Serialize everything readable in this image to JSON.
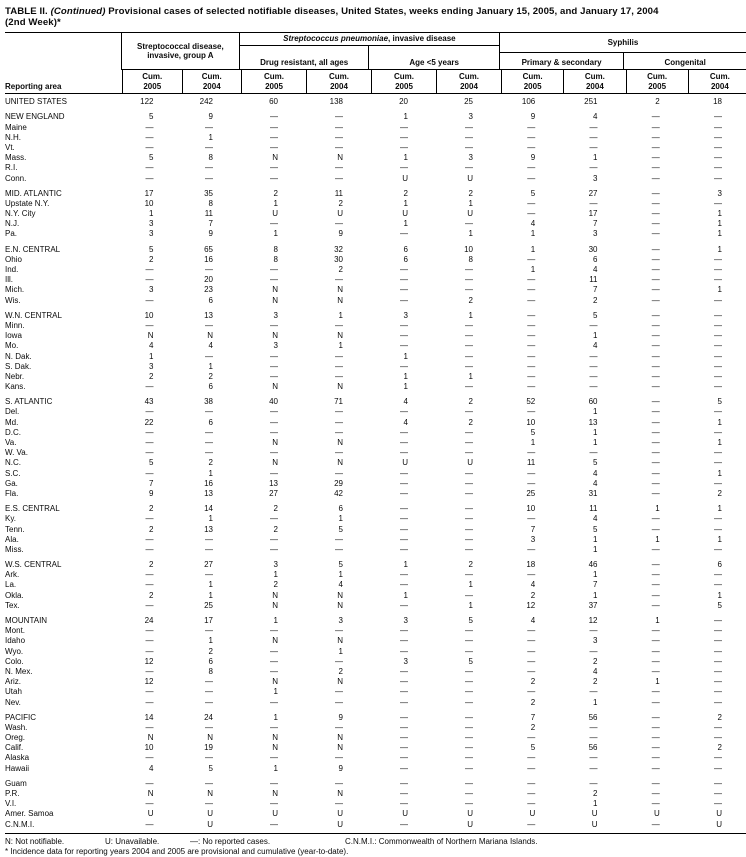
{
  "title": {
    "lead": "TABLE II. ",
    "continued": "(Continued)",
    "rest": " Provisional cases of selected notifiable diseases, United States, weeks ending January 15, 2005, and January 17, 2004",
    "line2": "(2nd Week)*"
  },
  "header": {
    "reporting_area": "Reporting area",
    "group_a": "Streptococcal disease, invasive, group A",
    "spn_italic": "Streptococcus pneumoniae",
    "spn_rest": ", invasive disease",
    "drug_resistant": "Drug resistant, all ages",
    "age5": "Age <5 years",
    "syphilis": "Syphilis",
    "primary_secondary": "Primary & secondary",
    "congenital": "Congenital",
    "cum": "Cum.",
    "years": [
      "2005",
      "2004",
      "2005",
      "2004",
      "2005",
      "2004",
      "2005",
      "2004",
      "2005",
      "2004"
    ]
  },
  "groups": [
    {
      "rows": [
        {
          "area": "UNITED STATES",
          "values": [
            "122",
            "242",
            "60",
            "138",
            "20",
            "25",
            "106",
            "251",
            "2",
            "18"
          ]
        }
      ]
    },
    {
      "rows": [
        {
          "area": "NEW ENGLAND",
          "values": [
            "5",
            "9",
            "—",
            "—",
            "1",
            "3",
            "9",
            "4",
            "—",
            "—"
          ]
        },
        {
          "area": "Maine",
          "values": [
            "—",
            "—",
            "—",
            "—",
            "—",
            "—",
            "—",
            "—",
            "—",
            "—"
          ]
        },
        {
          "area": "N.H.",
          "values": [
            "—",
            "1",
            "—",
            "—",
            "—",
            "—",
            "—",
            "—",
            "—",
            "—"
          ]
        },
        {
          "area": "Vt.",
          "values": [
            "—",
            "—",
            "—",
            "—",
            "—",
            "—",
            "—",
            "—",
            "—",
            "—"
          ]
        },
        {
          "area": "Mass.",
          "values": [
            "5",
            "8",
            "N",
            "N",
            "1",
            "3",
            "9",
            "1",
            "—",
            "—"
          ]
        },
        {
          "area": "R.I.",
          "values": [
            "—",
            "—",
            "—",
            "—",
            "—",
            "—",
            "—",
            "—",
            "—",
            "—"
          ]
        },
        {
          "area": "Conn.",
          "values": [
            "—",
            "—",
            "—",
            "—",
            "U",
            "U",
            "—",
            "3",
            "—",
            "—"
          ]
        }
      ]
    },
    {
      "rows": [
        {
          "area": "MID. ATLANTIC",
          "values": [
            "17",
            "35",
            "2",
            "11",
            "2",
            "2",
            "5",
            "27",
            "—",
            "3"
          ]
        },
        {
          "area": "Upstate N.Y.",
          "values": [
            "10",
            "8",
            "1",
            "2",
            "1",
            "1",
            "—",
            "—",
            "—",
            "—"
          ]
        },
        {
          "area": "N.Y. City",
          "values": [
            "1",
            "11",
            "U",
            "U",
            "U",
            "U",
            "—",
            "17",
            "—",
            "1"
          ]
        },
        {
          "area": "N.J.",
          "values": [
            "3",
            "7",
            "—",
            "—",
            "1",
            "—",
            "4",
            "7",
            "—",
            "1"
          ]
        },
        {
          "area": "Pa.",
          "values": [
            "3",
            "9",
            "1",
            "9",
            "—",
            "1",
            "1",
            "3",
            "—",
            "1"
          ]
        }
      ]
    },
    {
      "rows": [
        {
          "area": "E.N. CENTRAL",
          "values": [
            "5",
            "65",
            "8",
            "32",
            "6",
            "10",
            "1",
            "30",
            "—",
            "1"
          ]
        },
        {
          "area": "Ohio",
          "values": [
            "2",
            "16",
            "8",
            "30",
            "6",
            "8",
            "—",
            "6",
            "—",
            "—"
          ]
        },
        {
          "area": "Ind.",
          "values": [
            "—",
            "—",
            "—",
            "2",
            "—",
            "—",
            "1",
            "4",
            "—",
            "—"
          ]
        },
        {
          "area": "Ill.",
          "values": [
            "—",
            "20",
            "—",
            "—",
            "—",
            "—",
            "—",
            "11",
            "—",
            "—"
          ]
        },
        {
          "area": "Mich.",
          "values": [
            "3",
            "23",
            "N",
            "N",
            "—",
            "—",
            "—",
            "7",
            "—",
            "1"
          ]
        },
        {
          "area": "Wis.",
          "values": [
            "—",
            "6",
            "N",
            "N",
            "—",
            "2",
            "—",
            "2",
            "—",
            "—"
          ]
        }
      ]
    },
    {
      "rows": [
        {
          "area": "W.N. CENTRAL",
          "values": [
            "10",
            "13",
            "3",
            "1",
            "3",
            "1",
            "—",
            "5",
            "—",
            "—"
          ]
        },
        {
          "area": "Minn.",
          "values": [
            "—",
            "—",
            "—",
            "—",
            "—",
            "—",
            "—",
            "—",
            "—",
            "—"
          ]
        },
        {
          "area": "Iowa",
          "values": [
            "N",
            "N",
            "N",
            "N",
            "—",
            "—",
            "—",
            "1",
            "—",
            "—"
          ]
        },
        {
          "area": "Mo.",
          "values": [
            "4",
            "4",
            "3",
            "1",
            "—",
            "—",
            "—",
            "4",
            "—",
            "—"
          ]
        },
        {
          "area": "N. Dak.",
          "values": [
            "1",
            "—",
            "—",
            "—",
            "1",
            "—",
            "—",
            "—",
            "—",
            "—"
          ]
        },
        {
          "area": "S. Dak.",
          "values": [
            "3",
            "1",
            "—",
            "—",
            "—",
            "—",
            "—",
            "—",
            "—",
            "—"
          ]
        },
        {
          "area": "Nebr.",
          "values": [
            "2",
            "2",
            "—",
            "—",
            "1",
            "1",
            "—",
            "—",
            "—",
            "—"
          ]
        },
        {
          "area": "Kans.",
          "values": [
            "—",
            "6",
            "N",
            "N",
            "1",
            "—",
            "—",
            "—",
            "—",
            "—"
          ]
        }
      ]
    },
    {
      "rows": [
        {
          "area": "S. ATLANTIC",
          "values": [
            "43",
            "38",
            "40",
            "71",
            "4",
            "2",
            "52",
            "60",
            "—",
            "5"
          ]
        },
        {
          "area": "Del.",
          "values": [
            "—",
            "—",
            "—",
            "—",
            "—",
            "—",
            "—",
            "1",
            "—",
            "—"
          ]
        },
        {
          "area": "Md.",
          "values": [
            "22",
            "6",
            "—",
            "—",
            "4",
            "2",
            "10",
            "13",
            "—",
            "1"
          ]
        },
        {
          "area": "D.C.",
          "values": [
            "—",
            "—",
            "—",
            "—",
            "—",
            "—",
            "5",
            "1",
            "—",
            "—"
          ]
        },
        {
          "area": "Va.",
          "values": [
            "—",
            "—",
            "N",
            "N",
            "—",
            "—",
            "1",
            "1",
            "—",
            "1"
          ]
        },
        {
          "area": "W. Va.",
          "values": [
            "—",
            "—",
            "—",
            "—",
            "—",
            "—",
            "—",
            "—",
            "—",
            "—"
          ]
        },
        {
          "area": "N.C.",
          "values": [
            "5",
            "2",
            "N",
            "N",
            "U",
            "U",
            "11",
            "5",
            "—",
            "—"
          ]
        },
        {
          "area": "S.C.",
          "values": [
            "—",
            "1",
            "—",
            "—",
            "—",
            "—",
            "—",
            "4",
            "—",
            "1"
          ]
        },
        {
          "area": "Ga.",
          "values": [
            "7",
            "16",
            "13",
            "29",
            "—",
            "—",
            "—",
            "4",
            "—",
            "—"
          ]
        },
        {
          "area": "Fla.",
          "values": [
            "9",
            "13",
            "27",
            "42",
            "—",
            "—",
            "25",
            "31",
            "—",
            "2"
          ]
        }
      ]
    },
    {
      "rows": [
        {
          "area": "E.S. CENTRAL",
          "values": [
            "2",
            "14",
            "2",
            "6",
            "—",
            "—",
            "10",
            "11",
            "1",
            "1"
          ]
        },
        {
          "area": "Ky.",
          "values": [
            "—",
            "1",
            "—",
            "1",
            "—",
            "—",
            "—",
            "4",
            "—",
            "—"
          ]
        },
        {
          "area": "Tenn.",
          "values": [
            "2",
            "13",
            "2",
            "5",
            "—",
            "—",
            "7",
            "5",
            "—",
            "—"
          ]
        },
        {
          "area": "Ala.",
          "values": [
            "—",
            "—",
            "—",
            "—",
            "—",
            "—",
            "3",
            "1",
            "1",
            "1"
          ]
        },
        {
          "area": "Miss.",
          "values": [
            "—",
            "—",
            "—",
            "—",
            "—",
            "—",
            "—",
            "1",
            "—",
            "—"
          ]
        }
      ]
    },
    {
      "rows": [
        {
          "area": "W.S. CENTRAL",
          "values": [
            "2",
            "27",
            "3",
            "5",
            "1",
            "2",
            "18",
            "46",
            "—",
            "6"
          ]
        },
        {
          "area": "Ark.",
          "values": [
            "—",
            "—",
            "1",
            "1",
            "—",
            "—",
            "—",
            "1",
            "—",
            "—"
          ]
        },
        {
          "area": "La.",
          "values": [
            "—",
            "1",
            "2",
            "4",
            "—",
            "1",
            "4",
            "7",
            "—",
            "—"
          ]
        },
        {
          "area": "Okla.",
          "values": [
            "2",
            "1",
            "N",
            "N",
            "1",
            "—",
            "2",
            "1",
            "—",
            "1"
          ]
        },
        {
          "area": "Tex.",
          "values": [
            "—",
            "25",
            "N",
            "N",
            "—",
            "1",
            "12",
            "37",
            "—",
            "5"
          ]
        }
      ]
    },
    {
      "rows": [
        {
          "area": "MOUNTAIN",
          "values": [
            "24",
            "17",
            "1",
            "3",
            "3",
            "5",
            "4",
            "12",
            "1",
            "—"
          ]
        },
        {
          "area": "Mont.",
          "values": [
            "—",
            "—",
            "—",
            "—",
            "—",
            "—",
            "—",
            "—",
            "—",
            "—"
          ]
        },
        {
          "area": "Idaho",
          "values": [
            "—",
            "1",
            "N",
            "N",
            "—",
            "—",
            "—",
            "3",
            "—",
            "—"
          ]
        },
        {
          "area": "Wyo.",
          "values": [
            "—",
            "2",
            "—",
            "1",
            "—",
            "—",
            "—",
            "—",
            "—",
            "—"
          ]
        },
        {
          "area": "Colo.",
          "values": [
            "12",
            "6",
            "—",
            "—",
            "3",
            "5",
            "—",
            "2",
            "—",
            "—"
          ]
        },
        {
          "area": "N. Mex.",
          "values": [
            "—",
            "8",
            "—",
            "2",
            "—",
            "—",
            "—",
            "4",
            "—",
            "—"
          ]
        },
        {
          "area": "Ariz.",
          "values": [
            "12",
            "—",
            "N",
            "N",
            "—",
            "—",
            "2",
            "2",
            "1",
            "—"
          ]
        },
        {
          "area": "Utah",
          "values": [
            "—",
            "—",
            "1",
            "—",
            "—",
            "—",
            "—",
            "—",
            "—",
            "—"
          ]
        },
        {
          "area": "Nev.",
          "values": [
            "—",
            "—",
            "—",
            "—",
            "—",
            "—",
            "2",
            "1",
            "—",
            "—"
          ]
        }
      ]
    },
    {
      "rows": [
        {
          "area": "PACIFIC",
          "values": [
            "14",
            "24",
            "1",
            "9",
            "—",
            "—",
            "7",
            "56",
            "—",
            "2"
          ]
        },
        {
          "area": "Wash.",
          "values": [
            "—",
            "—",
            "—",
            "—",
            "—",
            "—",
            "2",
            "—",
            "—",
            "—"
          ]
        },
        {
          "area": "Oreg.",
          "values": [
            "N",
            "N",
            "N",
            "N",
            "—",
            "—",
            "—",
            "—",
            "—",
            "—"
          ]
        },
        {
          "area": "Calif.",
          "values": [
            "10",
            "19",
            "N",
            "N",
            "—",
            "—",
            "5",
            "56",
            "—",
            "2"
          ]
        },
        {
          "area": "Alaska",
          "values": [
            "—",
            "—",
            "—",
            "—",
            "—",
            "—",
            "—",
            "—",
            "—",
            "—"
          ]
        },
        {
          "area": "Hawaii",
          "values": [
            "4",
            "5",
            "1",
            "9",
            "—",
            "—",
            "—",
            "—",
            "—",
            "—"
          ]
        }
      ]
    },
    {
      "rows": [
        {
          "area": "Guam",
          "values": [
            "—",
            "—",
            "—",
            "—",
            "—",
            "—",
            "—",
            "—",
            "—",
            "—"
          ]
        },
        {
          "area": "P.R.",
          "values": [
            "N",
            "N",
            "N",
            "N",
            "—",
            "—",
            "—",
            "2",
            "—",
            "—"
          ]
        },
        {
          "area": "V.I.",
          "values": [
            "—",
            "—",
            "—",
            "—",
            "—",
            "—",
            "—",
            "1",
            "—",
            "—"
          ]
        },
        {
          "area": "Amer. Samoa",
          "values": [
            "U",
            "U",
            "U",
            "U",
            "U",
            "U",
            "U",
            "U",
            "U",
            "U"
          ]
        },
        {
          "area": "C.N.M.I.",
          "values": [
            "—",
            "U",
            "—",
            "U",
            "—",
            "U",
            "—",
            "U",
            "—",
            "U"
          ]
        }
      ]
    }
  ],
  "footnotes": {
    "legend": [
      "N: Not notifiable.",
      "U: Unavailable.",
      "—: No reported cases.",
      "C.N.M.I.: Commonwealth of Northern Mariana Islands."
    ],
    "incidence": "* Incidence data for reporting years 2004 and 2005 are provisional and cumulative (year-to-date)."
  }
}
